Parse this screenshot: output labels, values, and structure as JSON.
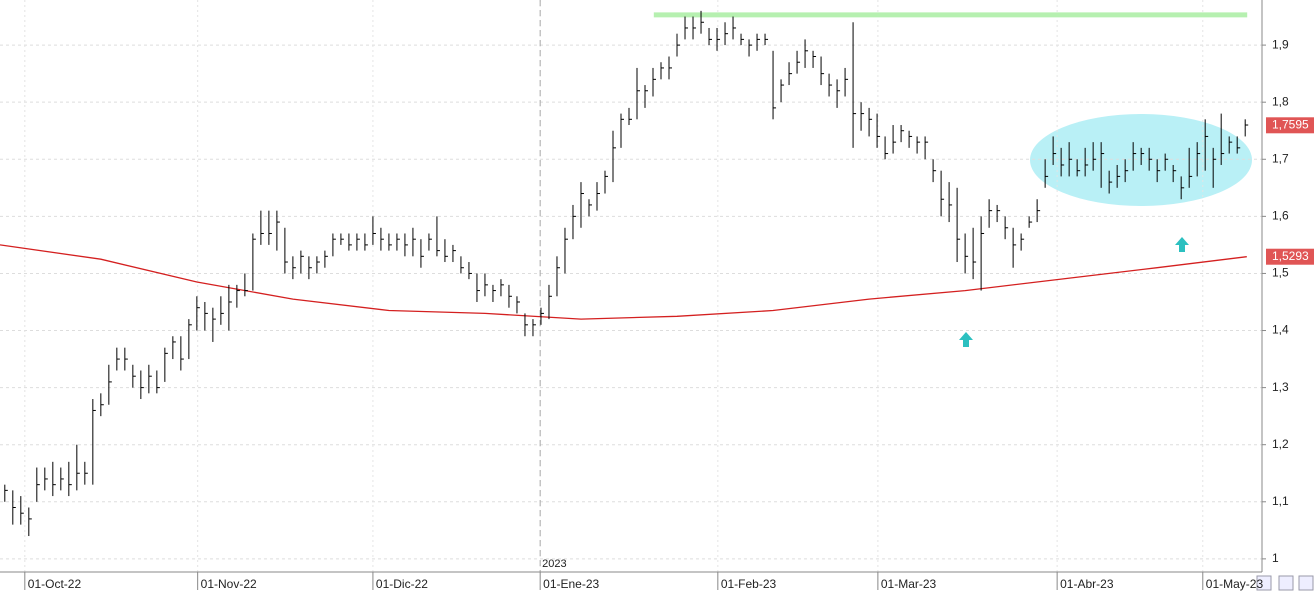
{
  "chart_data": {
    "type": "ohlc",
    "color": "#000000",
    "xlim": [
      -0.6,
      157.1
    ],
    "ylim": [
      0.977,
      1.979
    ],
    "yticks": [
      1,
      {
        "value": 1.1,
        "label": "1,1"
      },
      {
        "value": 1.2,
        "label": "1,2"
      },
      {
        "value": 1.3,
        "label": "1,3"
      },
      {
        "value": 1.4,
        "label": "1,4"
      },
      {
        "value": 1.5,
        "label": "1,5"
      },
      {
        "value": 1.6,
        "label": "1,6"
      },
      {
        "value": 1.7,
        "label": "1,7"
      },
      {
        "value": 1.8,
        "label": "1,8"
      },
      {
        "value": 1.9,
        "label": "1,9"
      }
    ],
    "xticks": [
      {
        "value": 2.5,
        "label": "01-Oct-22"
      },
      {
        "value": 24.1,
        "label": "01-Nov-22"
      },
      {
        "value": 46,
        "label": "01-Dic-22"
      },
      {
        "value": 66.9,
        "label": "01-Ene-23"
      },
      {
        "value": 89.1,
        "label": "01-Feb-23"
      },
      {
        "value": 109.1,
        "label": "01-Mar-23"
      },
      {
        "value": 131.5,
        "label": "01-Abr-23"
      },
      {
        "value": 149.7,
        "label": "01-May-23"
      }
    ],
    "grid": true,
    "year_divider": {
      "x": 66.9,
      "label": "2023"
    },
    "high": [
      1.13,
      1.12,
      1.11,
      1.09,
      1.16,
      1.16,
      1.17,
      1.16,
      1.17,
      1.2,
      1.17,
      1.28,
      1.29,
      1.34,
      1.37,
      1.37,
      1.34,
      1.33,
      1.34,
      1.33,
      1.37,
      1.39,
      1.39,
      1.42,
      1.46,
      1.45,
      1.44,
      1.46,
      1.48,
      1.48,
      1.5,
      1.57,
      1.61,
      1.61,
      1.61,
      1.58,
      1.53,
      1.54,
      1.53,
      1.53,
      1.54,
      1.57,
      1.57,
      1.57,
      1.57,
      1.57,
      1.6,
      1.58,
      1.57,
      1.57,
      1.57,
      1.58,
      1.56,
      1.57,
      1.6,
      1.56,
      1.55,
      1.53,
      1.52,
      1.5,
      1.5,
      1.48,
      1.49,
      1.48,
      1.46,
      1.43,
      1.42,
      1.44,
      1.48,
      1.53,
      1.58,
      1.62,
      1.66,
      1.63,
      1.66,
      1.68,
      1.75,
      1.78,
      1.79,
      1.86,
      1.83,
      1.86,
      1.87,
      1.88,
      1.92,
      1.95,
      1.95,
      1.96,
      1.93,
      1.93,
      1.94,
      1.95,
      1.92,
      1.91,
      1.92,
      1.92,
      1.89,
      1.84,
      1.87,
      1.89,
      1.91,
      1.89,
      1.88,
      1.85,
      1.84,
      1.86,
      1.94,
      1.8,
      1.79,
      1.78,
      1.74,
      1.76,
      1.76,
      1.75,
      1.74,
      1.74,
      1.7,
      1.68,
      1.66,
      1.65,
      1.57,
      1.58,
      1.6,
      1.63,
      1.62,
      1.6,
      1.58,
      1.57,
      1.6,
      1.63,
      1.7,
      1.74,
      1.72,
      1.73,
      1.7,
      1.72,
      1.73,
      1.73,
      1.68,
      1.69,
      1.7,
      1.73,
      1.72,
      1.72,
      1.7,
      1.71,
      1.69,
      1.67,
      1.72,
      1.73,
      1.77,
      1.72,
      1.78,
      1.74,
      1.74,
      1.77
    ],
    "low": [
      1.1,
      1.06,
      1.06,
      1.04,
      1.1,
      1.12,
      1.11,
      1.12,
      1.11,
      1.12,
      1.13,
      1.13,
      1.25,
      1.27,
      1.33,
      1.33,
      1.3,
      1.28,
      1.29,
      1.29,
      1.31,
      1.35,
      1.33,
      1.35,
      1.4,
      1.4,
      1.38,
      1.41,
      1.4,
      1.44,
      1.46,
      1.47,
      1.55,
      1.55,
      1.54,
      1.5,
      1.49,
      1.5,
      1.49,
      1.5,
      1.51,
      1.53,
      1.55,
      1.54,
      1.54,
      1.54,
      1.55,
      1.54,
      1.54,
      1.54,
      1.53,
      1.53,
      1.51,
      1.54,
      1.53,
      1.52,
      1.52,
      1.5,
      1.49,
      1.45,
      1.46,
      1.45,
      1.46,
      1.44,
      1.43,
      1.39,
      1.39,
      1.41,
      1.42,
      1.46,
      1.5,
      1.56,
      1.58,
      1.6,
      1.61,
      1.64,
      1.66,
      1.72,
      1.76,
      1.77,
      1.79,
      1.81,
      1.84,
      1.84,
      1.88,
      1.91,
      1.91,
      1.92,
      1.9,
      1.89,
      1.9,
      1.91,
      1.9,
      1.88,
      1.89,
      1.9,
      1.77,
      1.8,
      1.83,
      1.85,
      1.86,
      1.86,
      1.83,
      1.81,
      1.79,
      1.81,
      1.72,
      1.75,
      1.74,
      1.72,
      1.7,
      1.71,
      1.73,
      1.72,
      1.71,
      1.7,
      1.66,
      1.6,
      1.59,
      1.52,
      1.5,
      1.49,
      1.47,
      1.58,
      1.59,
      1.56,
      1.51,
      1.54,
      1.58,
      1.59,
      1.65,
      1.69,
      1.67,
      1.67,
      1.67,
      1.67,
      1.68,
      1.65,
      1.64,
      1.65,
      1.66,
      1.68,
      1.69,
      1.68,
      1.66,
      1.68,
      1.66,
      1.63,
      1.65,
      1.67,
      1.68,
      1.65,
      1.69,
      1.71,
      1.71,
      1.74
    ],
    "close": [
      1.12,
      1.09,
      1.08,
      1.07,
      1.13,
      1.14,
      1.13,
      1.14,
      1.13,
      1.15,
      1.15,
      1.26,
      1.27,
      1.31,
      1.35,
      1.35,
      1.32,
      1.3,
      1.32,
      1.3,
      1.36,
      1.38,
      1.35,
      1.41,
      1.44,
      1.43,
      1.42,
      1.43,
      1.45,
      1.47,
      1.47,
      1.56,
      1.57,
      1.57,
      1.59,
      1.52,
      1.51,
      1.53,
      1.51,
      1.52,
      1.53,
      1.56,
      1.56,
      1.55,
      1.56,
      1.55,
      1.57,
      1.56,
      1.55,
      1.56,
      1.55,
      1.56,
      1.53,
      1.56,
      1.54,
      1.53,
      1.54,
      1.51,
      1.5,
      1.47,
      1.48,
      1.47,
      1.48,
      1.46,
      1.45,
      1.41,
      1.41,
      1.43,
      1.46,
      1.51,
      1.56,
      1.6,
      1.64,
      1.62,
      1.64,
      1.67,
      1.72,
      1.77,
      1.77,
      1.82,
      1.82,
      1.84,
      1.86,
      1.86,
      1.9,
      1.93,
      1.93,
      1.94,
      1.91,
      1.91,
      1.92,
      1.93,
      1.91,
      1.9,
      1.91,
      1.91,
      1.79,
      1.83,
      1.85,
      1.87,
      1.89,
      1.88,
      1.85,
      1.83,
      1.82,
      1.84,
      1.78,
      1.78,
      1.77,
      1.74,
      1.71,
      1.73,
      1.75,
      1.74,
      1.73,
      1.73,
      1.68,
      1.63,
      1.62,
      1.56,
      1.53,
      1.52,
      1.57,
      1.61,
      1.61,
      1.58,
      1.55,
      1.56,
      1.59,
      1.61,
      1.67,
      1.71,
      1.69,
      1.7,
      1.68,
      1.69,
      1.7,
      1.71,
      1.66,
      1.67,
      1.68,
      1.71,
      1.71,
      1.7,
      1.68,
      1.7,
      1.68,
      1.65,
      1.67,
      1.71,
      1.74,
      1.7,
      1.71,
      1.73,
      1.72,
      1.76
    ],
    "moving_average": {
      "color": "#d42020",
      "x": [
        -0.6,
        12,
        24,
        36,
        48,
        60,
        72,
        84,
        96,
        108,
        120,
        132,
        144,
        155.2
      ],
      "values": [
        1.55,
        1.525,
        1.485,
        1.455,
        1.435,
        1.43,
        1.42,
        1.425,
        1.435,
        1.455,
        1.47,
        1.49,
        1.51,
        1.5293
      ]
    },
    "resistance": {
      "color": "#b6f0b0",
      "value": 1.953,
      "x": [
        81.1,
        155.25
      ]
    },
    "price_labels": [
      {
        "value": 1.7595,
        "label": "1,7595"
      },
      {
        "value": 1.5293,
        "label": "1,5293"
      }
    ]
  }
}
